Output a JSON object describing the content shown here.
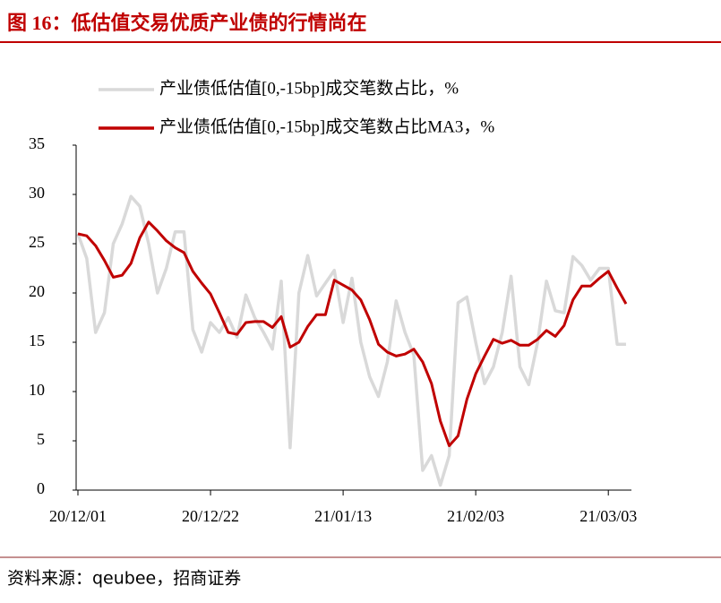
{
  "header": {
    "title": "图 16：低估值交易优质产业债的行情尚在"
  },
  "chart_data": {
    "type": "line",
    "categories": [
      "20/12/01",
      null,
      null,
      null,
      null,
      null,
      null,
      null,
      null,
      null,
      null,
      null,
      null,
      null,
      null,
      "20/12/22",
      null,
      null,
      null,
      null,
      null,
      null,
      null,
      null,
      null,
      null,
      null,
      null,
      null,
      null,
      "21/01/13",
      null,
      null,
      null,
      null,
      null,
      null,
      null,
      null,
      null,
      null,
      null,
      null,
      null,
      null,
      "21/02/03",
      null,
      null,
      null,
      null,
      null,
      null,
      null,
      null,
      null,
      null,
      null,
      null,
      null,
      null,
      "21/03/03",
      null,
      null
    ],
    "series": [
      {
        "name": "产业债低估值[0,-15bp]成交笔数占比，%",
        "color": "#d9d9d9",
        "values": [
          26,
          23.5,
          16,
          18,
          25,
          27,
          29.8,
          28.8,
          25,
          20,
          22.5,
          26.2,
          26.2,
          16.3,
          14,
          17,
          16,
          17.5,
          15.5,
          19.8,
          17.5,
          16,
          14.3,
          21.2,
          4.3,
          20,
          23.8,
          19.7,
          21,
          22.3,
          17,
          21.5,
          15,
          11.5,
          9.5,
          13,
          19.2,
          16,
          13.7,
          2,
          3.5,
          0.5,
          3.5,
          19,
          19.6,
          15,
          10.8,
          12.5,
          16,
          21.7,
          12.5,
          10.7,
          15,
          21.2,
          18.2,
          18,
          23.7,
          22.8,
          21.3,
          22.5,
          22.5,
          14.8,
          14.8
        ]
      },
      {
        "name": "产业债低估值[0,-15bp]成交笔数占比MA3，%",
        "color": "#c00000",
        "values": [
          26,
          25.8,
          24.8,
          23.3,
          21.6,
          21.8,
          23,
          25.6,
          27.2,
          26.3,
          25.3,
          24.6,
          24.1,
          22.2,
          21,
          19.9,
          18,
          16,
          15.8,
          17,
          17.1,
          17.1,
          16.5,
          17.6,
          14.5,
          15,
          16.6,
          17.8,
          17.8,
          21.3,
          20.8,
          20.3,
          19.3,
          17.3,
          14.8,
          14,
          13.6,
          13.8,
          14.3,
          13,
          10.8,
          7,
          4.5,
          5.5,
          9.2,
          11.8,
          13.6,
          15.3,
          14.9,
          15.2,
          14.7,
          14.7,
          15.3,
          16.2,
          15.6,
          16.7,
          19.3,
          20.7,
          20.7,
          21.5,
          22.2,
          20.5,
          18.9
        ]
      }
    ],
    "ylim": [
      0,
      35
    ],
    "yticks": [
      0,
      5,
      10,
      15,
      20,
      25,
      30,
      35
    ],
    "grid": false,
    "legend": "top"
  },
  "source": "资料来源：qeubee，招商证券"
}
